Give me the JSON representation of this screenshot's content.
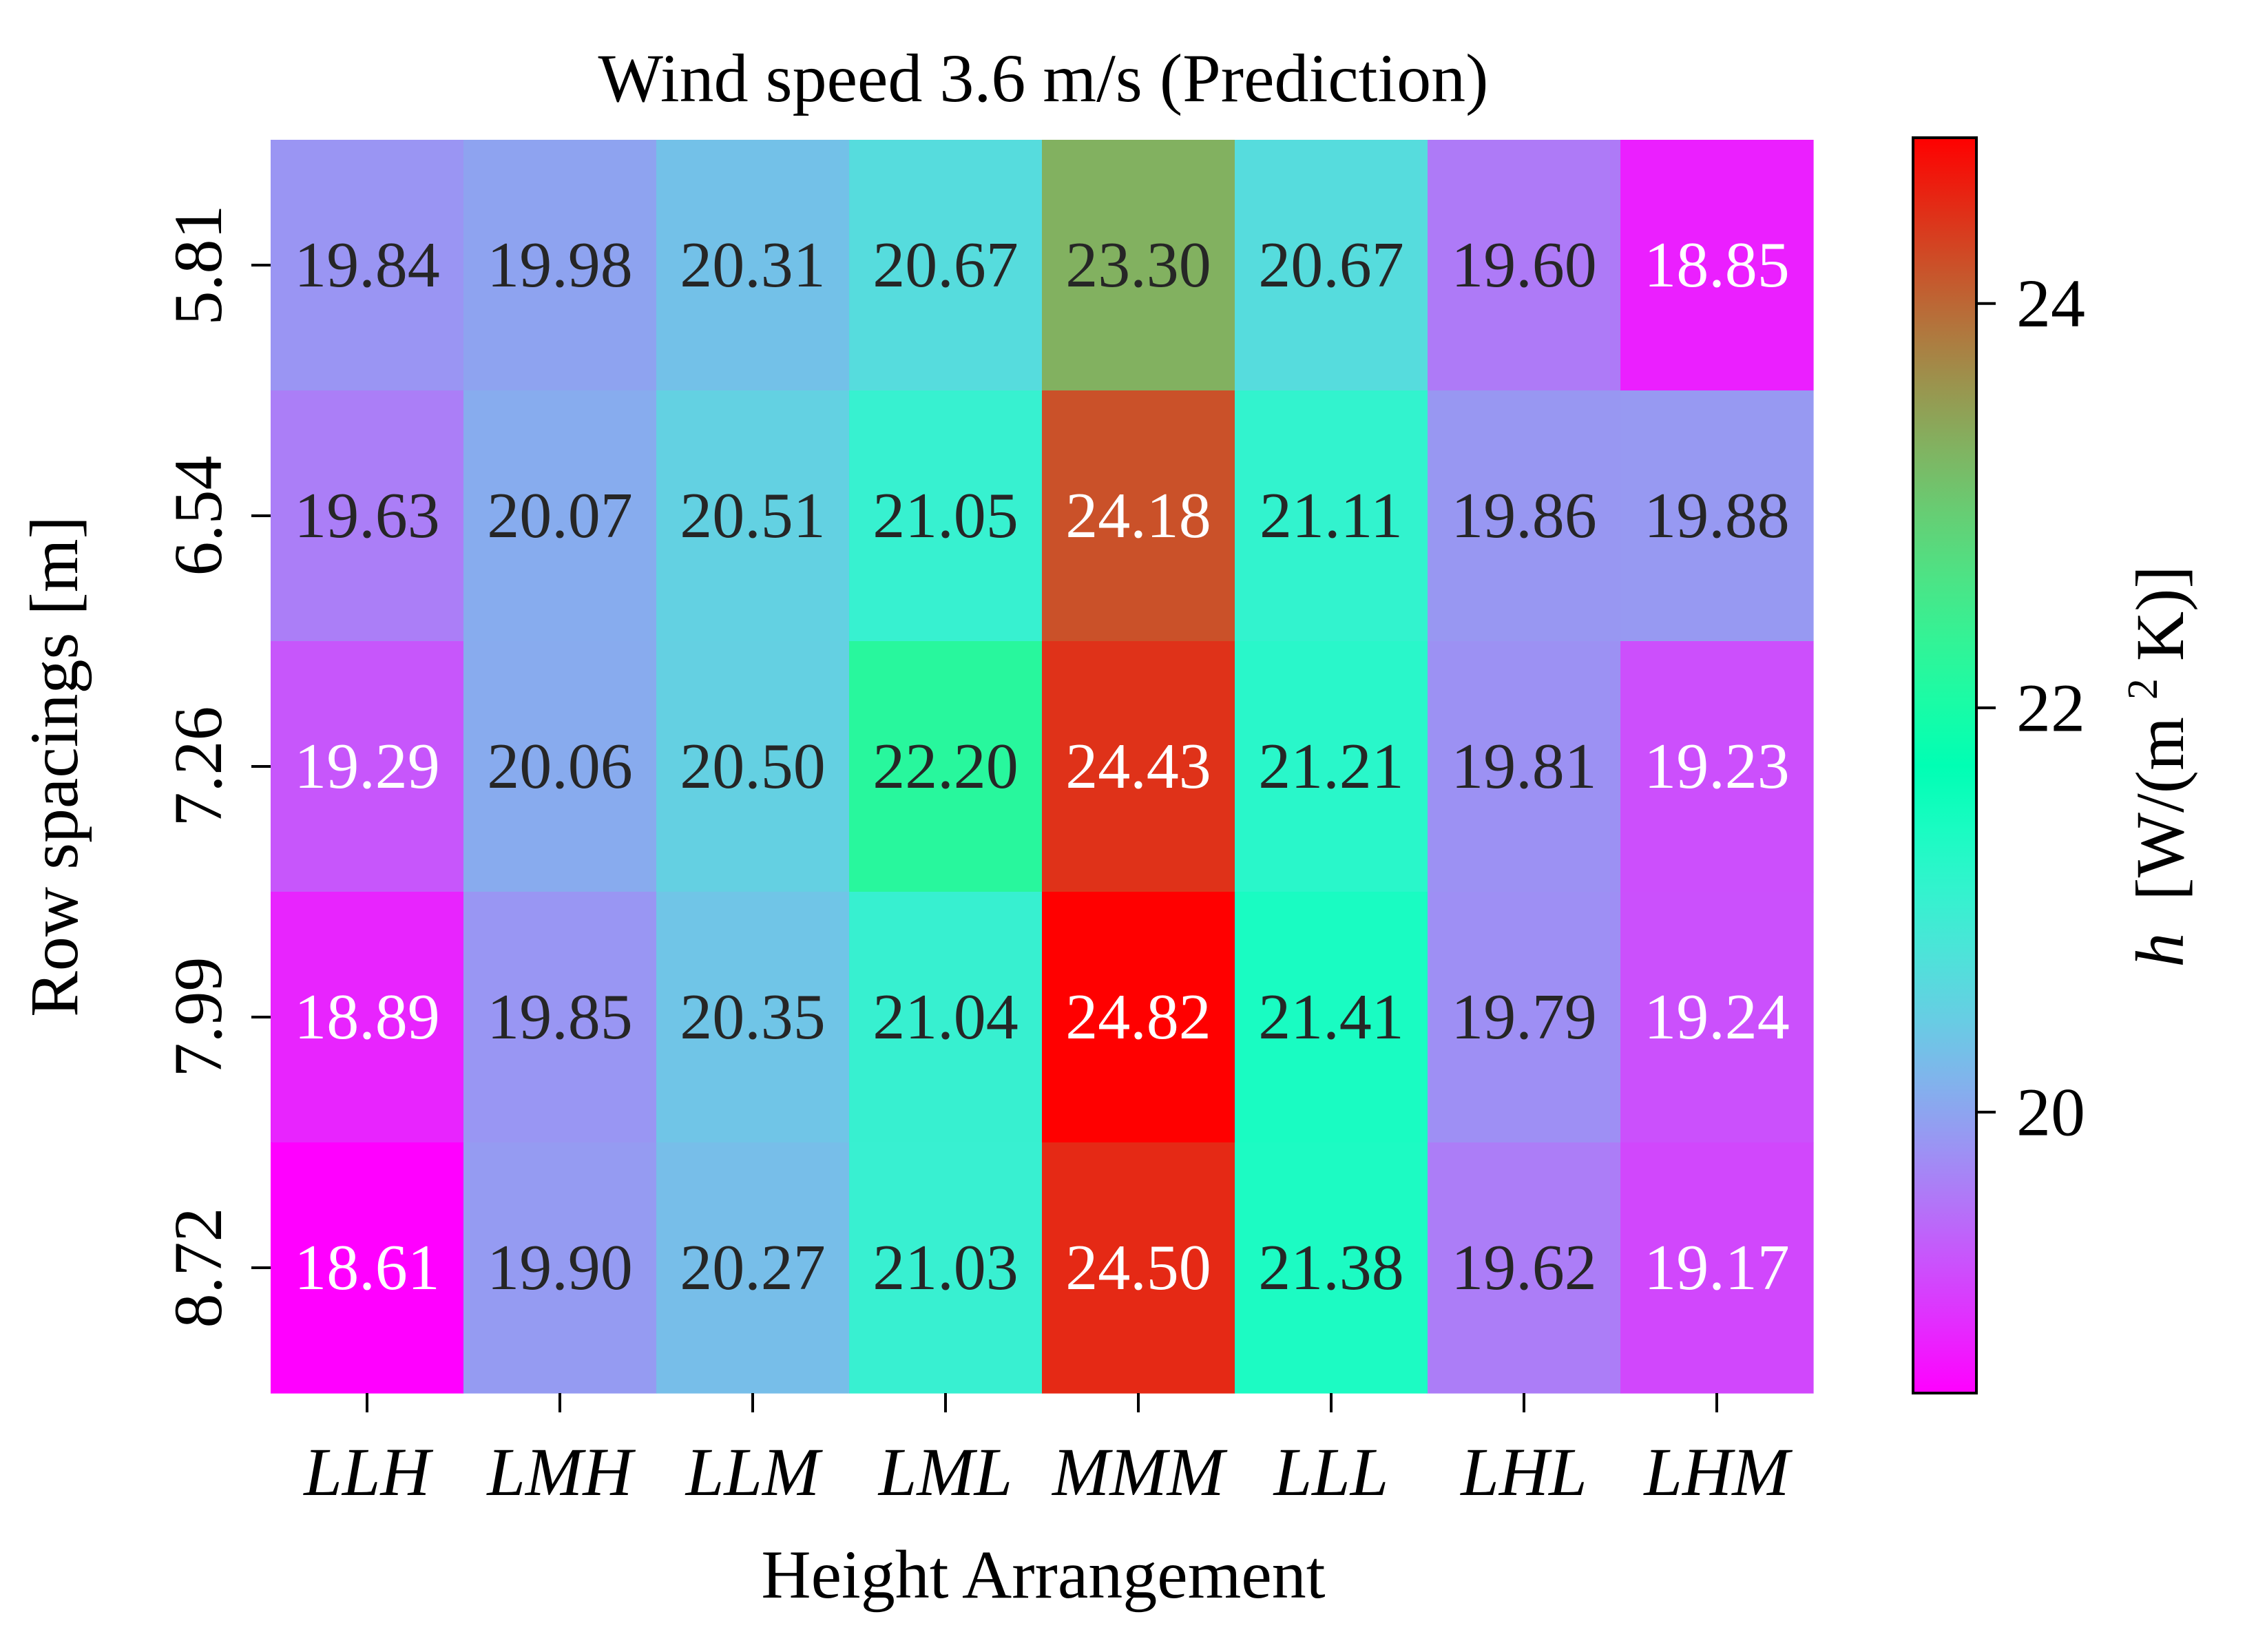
{
  "chart_data": {
    "type": "heatmap",
    "title": "Wind speed 3.6 m/s (Prediction)",
    "xlabel": "Height Arrangement",
    "ylabel": "Row spacings [m]",
    "x_categories": [
      "LLH",
      "LMH",
      "LLM",
      "LML",
      "MMM",
      "LLL",
      "LHL",
      "LHM"
    ],
    "y_categories": [
      "5.81",
      "6.54",
      "7.26",
      "7.99",
      "8.72"
    ],
    "values": [
      [
        19.84,
        19.98,
        20.31,
        20.67,
        23.3,
        20.67,
        19.6,
        18.85
      ],
      [
        19.63,
        20.07,
        20.51,
        21.05,
        24.18,
        21.11,
        19.86,
        19.88
      ],
      [
        19.29,
        20.06,
        20.5,
        22.2,
        24.43,
        21.21,
        19.81,
        19.23
      ],
      [
        18.89,
        19.85,
        20.35,
        21.04,
        24.82,
        21.41,
        19.79,
        19.24
      ],
      [
        18.61,
        19.9,
        20.27,
        21.03,
        24.5,
        21.38,
        19.62,
        19.17
      ]
    ],
    "value_labels": [
      [
        "19.84",
        "19.98",
        "20.31",
        "20.67",
        "23.30",
        "20.67",
        "19.60",
        "18.85"
      ],
      [
        "19.63",
        "20.07",
        "20.51",
        "21.05",
        "24.18",
        "21.11",
        "19.86",
        "19.88"
      ],
      [
        "19.29",
        "20.06",
        "20.50",
        "22.20",
        "24.43",
        "21.21",
        "19.81",
        "19.23"
      ],
      [
        "18.89",
        "19.85",
        "20.35",
        "21.04",
        "24.82",
        "21.41",
        "19.79",
        "19.24"
      ],
      [
        "18.61",
        "19.90",
        "20.27",
        "21.03",
        "24.50",
        "21.38",
        "19.62",
        "19.17"
      ]
    ],
    "colormap": "rainbow",
    "colorbar": {
      "label": "h [W/(m2K)]",
      "label_symbol": "h",
      "label_units": "[W/(m",
      "label_superscript": "2",
      "label_tail": "K)]",
      "vmin": 18.61,
      "vmax": 24.82,
      "ticks": [
        20,
        22,
        24
      ],
      "tick_labels": [
        "20",
        "22",
        "24"
      ]
    },
    "grid": false,
    "legend": "colorbar-right"
  }
}
